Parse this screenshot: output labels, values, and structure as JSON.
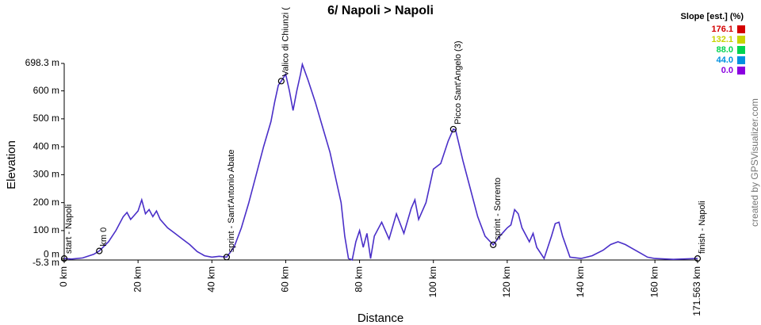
{
  "chart_data": {
    "type": "line",
    "title": "6/ Napoli > Napoli",
    "x_label": "Distance",
    "y_label": "Elevation",
    "credit": "created by GPSVisualizer.com",
    "color": "#4a2fc8",
    "x": [
      0,
      2,
      5,
      8,
      9.5,
      12,
      14,
      16,
      17,
      18,
      19,
      20,
      21,
      22,
      23,
      24,
      25,
      26,
      28,
      30,
      32,
      34,
      36,
      38,
      40,
      42,
      44,
      46,
      48,
      50,
      52,
      54,
      56,
      57,
      58,
      58.8,
      60,
      61,
      62,
      63,
      64,
      64.5,
      66,
      68,
      70,
      72,
      74,
      75,
      76,
      77,
      78,
      79,
      80,
      81,
      82,
      83,
      84,
      86,
      88,
      90,
      92,
      94,
      95,
      96,
      98,
      100,
      102,
      104,
      105.4,
      106,
      108,
      110,
      112,
      114,
      116.2,
      118,
      120,
      121,
      122,
      123,
      124,
      126,
      127,
      128,
      130,
      132,
      133,
      134,
      135,
      137,
      140,
      143,
      146,
      148,
      150,
      152,
      154,
      156,
      158,
      160,
      165,
      171.563
    ],
    "values": [
      0,
      -2,
      2,
      15,
      27,
      60,
      100,
      150,
      165,
      140,
      155,
      170,
      210,
      160,
      175,
      150,
      170,
      140,
      110,
      90,
      70,
      50,
      25,
      10,
      5,
      8,
      5,
      40,
      110,
      200,
      300,
      400,
      490,
      560,
      620,
      635,
      660,
      600,
      530,
      600,
      660,
      695,
      640,
      560,
      470,
      380,
      260,
      200,
      80,
      0,
      -5,
      60,
      100,
      40,
      90,
      0,
      80,
      130,
      70,
      160,
      90,
      180,
      210,
      140,
      200,
      320,
      340,
      420,
      463,
      460,
      350,
      250,
      150,
      80,
      49,
      80,
      110,
      120,
      175,
      160,
      110,
      60,
      90,
      40,
      0,
      80,
      125,
      130,
      80,
      5,
      0,
      10,
      30,
      50,
      60,
      50,
      35,
      20,
      5,
      0,
      -3,
      0
    ],
    "xlim": [
      0,
      171.563
    ],
    "ylim": [
      -5.3,
      698.3
    ],
    "xticks": [
      {
        "value": 0,
        "label": "0 km"
      },
      {
        "value": 20,
        "label": "20 km"
      },
      {
        "value": 40,
        "label": "40 km"
      },
      {
        "value": 60,
        "label": "60 km"
      },
      {
        "value": 80,
        "label": "80 km"
      },
      {
        "value": 100,
        "label": "100 km"
      },
      {
        "value": 120,
        "label": "120 km"
      },
      {
        "value": 140,
        "label": "140 km"
      },
      {
        "value": 160,
        "label": "160 km"
      },
      {
        "value": 171.563,
        "label": "171.563 km"
      }
    ],
    "yticks": [
      {
        "value": -5.3,
        "label": "-5.3 m"
      },
      {
        "value": 0,
        "label": "0 m"
      },
      {
        "value": 100,
        "label": "100 m"
      },
      {
        "value": 200,
        "label": "200 m"
      },
      {
        "value": 300,
        "label": "300 m"
      },
      {
        "value": 400,
        "label": "400 m"
      },
      {
        "value": 500,
        "label": "500 m"
      },
      {
        "value": 600,
        "label": "600 m"
      },
      {
        "value": 698.3,
        "label": "698.3 m"
      }
    ],
    "waypoints": [
      {
        "x": 0,
        "y": 0,
        "label": "start - Napoli"
      },
      {
        "x": 9.5,
        "y": 27,
        "label": "km 0"
      },
      {
        "x": 44,
        "y": 5,
        "label": "sprint - Sant'Antonio Abate"
      },
      {
        "x": 58.8,
        "y": 635,
        "label": "Valico di Chiunzi ("
      },
      {
        "x": 105.4,
        "y": 463,
        "label": "Picco Sant'Angelo (3)"
      },
      {
        "x": 116.2,
        "y": 49,
        "label": "sprint - Sorrento"
      },
      {
        "x": 171.563,
        "y": 0,
        "label": "finish - Napoli"
      }
    ],
    "slope_legend": {
      "title": "Slope [est.] (%)",
      "values": [
        176.1,
        132.1,
        88,
        44,
        0
      ],
      "value_labels": [
        "176.1",
        "132.1",
        "88.0",
        "44.0",
        "0.0"
      ],
      "colors": [
        "#d40000",
        "#c8d400",
        "#00d450",
        "#0090e0",
        "#8a00e0"
      ]
    }
  }
}
